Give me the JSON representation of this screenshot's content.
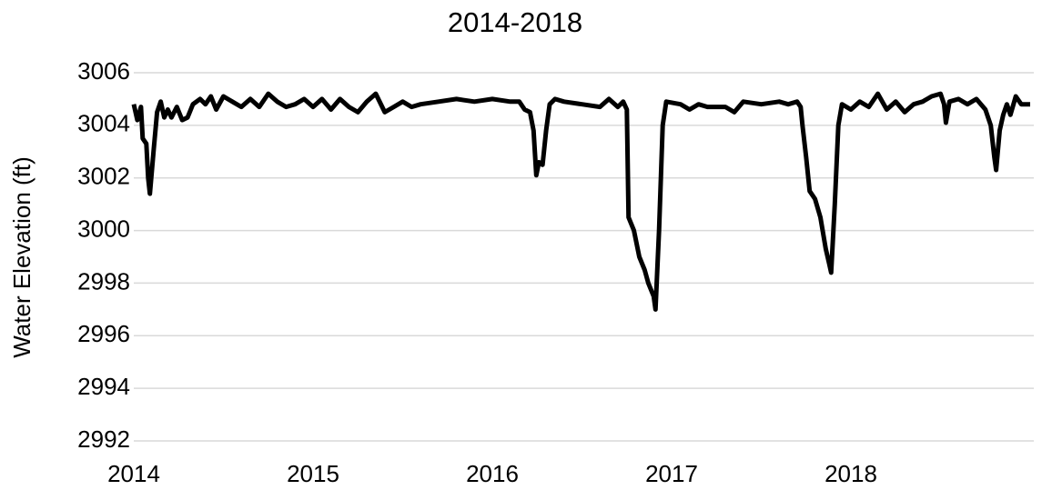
{
  "chart_data": {
    "type": "line",
    "title": "2014-2018",
    "y_label": "Water Elevation (ft)",
    "x": [
      2014.0,
      2014.02,
      2014.04,
      2014.05,
      2014.07,
      2014.08,
      2014.09,
      2014.11,
      2014.13,
      2014.15,
      2014.17,
      2014.19,
      2014.21,
      2014.24,
      2014.27,
      2014.3,
      2014.33,
      2014.37,
      2014.4,
      2014.43,
      2014.46,
      2014.5,
      2014.55,
      2014.6,
      2014.65,
      2014.7,
      2014.75,
      2014.8,
      2014.85,
      2014.9,
      2014.95,
      2015.0,
      2015.05,
      2015.1,
      2015.15,
      2015.2,
      2015.25,
      2015.3,
      2015.35,
      2015.4,
      2015.45,
      2015.5,
      2015.55,
      2015.6,
      2015.7,
      2015.8,
      2015.9,
      2016.0,
      2016.1,
      2016.15,
      2016.18,
      2016.21,
      2016.23,
      2016.245,
      2016.26,
      2016.28,
      2016.3,
      2016.32,
      2016.35,
      2016.4,
      2016.5,
      2016.6,
      2016.65,
      2016.7,
      2016.73,
      2016.75,
      2016.76,
      2016.79,
      2016.82,
      2016.85,
      2016.87,
      2016.9,
      2016.91,
      2016.93,
      2016.95,
      2016.97,
      2017.05,
      2017.1,
      2017.15,
      2017.2,
      2017.3,
      2017.35,
      2017.4,
      2017.5,
      2017.6,
      2017.65,
      2017.7,
      2017.72,
      2017.73,
      2017.75,
      2017.77,
      2017.8,
      2017.83,
      2017.86,
      2017.88,
      2017.89,
      2017.91,
      2017.93,
      2017.95,
      2018.0,
      2018.05,
      2018.1,
      2018.15,
      2018.2,
      2018.25,
      2018.3,
      2018.35,
      2018.4,
      2018.45,
      2018.5,
      2018.52,
      2018.53,
      2018.55,
      2018.6,
      2018.65,
      2018.7,
      2018.75,
      2018.78,
      2018.8,
      2018.81,
      2018.83,
      2018.85,
      2018.87,
      2018.89,
      2018.92,
      2018.95,
      2019.0
    ],
    "values": [
      3004.8,
      3004.2,
      3004.7,
      3003.5,
      3003.3,
      3002.0,
      3001.4,
      3003.0,
      3004.5,
      3004.9,
      3004.3,
      3004.6,
      3004.3,
      3004.7,
      3004.2,
      3004.3,
      3004.8,
      3005.0,
      3004.8,
      3005.1,
      3004.6,
      3005.1,
      3004.9,
      3004.7,
      3005.0,
      3004.7,
      3005.2,
      3004.9,
      3004.7,
      3004.8,
      3005.0,
      3004.7,
      3005.0,
      3004.6,
      3005.0,
      3004.7,
      3004.5,
      3004.9,
      3005.2,
      3004.5,
      3004.7,
      3004.9,
      3004.7,
      3004.8,
      3004.9,
      3005.0,
      3004.9,
      3005.0,
      3004.9,
      3004.9,
      3004.6,
      3004.5,
      3003.8,
      3002.1,
      3002.6,
      3002.5,
      3003.8,
      3004.8,
      3005.0,
      3004.9,
      3004.8,
      3004.7,
      3005.0,
      3004.7,
      3004.9,
      3004.6,
      3000.5,
      3000.0,
      2999.0,
      2998.5,
      2998.0,
      2997.5,
      2997.0,
      3000.0,
      3004.0,
      3004.9,
      3004.8,
      3004.6,
      3004.8,
      3004.7,
      3004.7,
      3004.5,
      3004.9,
      3004.8,
      3004.9,
      3004.8,
      3004.9,
      3004.7,
      3004.0,
      3002.8,
      3001.5,
      3001.2,
      3000.5,
      2999.3,
      2998.7,
      2998.4,
      3001.0,
      3004.0,
      3004.8,
      3004.6,
      3004.9,
      3004.7,
      3005.2,
      3004.6,
      3004.9,
      3004.5,
      3004.8,
      3004.9,
      3005.1,
      3005.2,
      3004.8,
      3004.1,
      3004.9,
      3005.0,
      3004.8,
      3005.0,
      3004.6,
      3004.0,
      3002.8,
      3002.3,
      3003.8,
      3004.4,
      3004.8,
      3004.4,
      3005.1,
      3004.8,
      3004.8
    ],
    "color": "#000000",
    "xlim": [
      2014,
      2019
    ],
    "xticks": [
      2014,
      2015,
      2016,
      2017,
      2018
    ],
    "ylim": [
      2992,
      3006
    ],
    "yticks": [
      2992,
      2994,
      2996,
      2998,
      3000,
      3002,
      3004,
      3006
    ],
    "grid": true
  }
}
